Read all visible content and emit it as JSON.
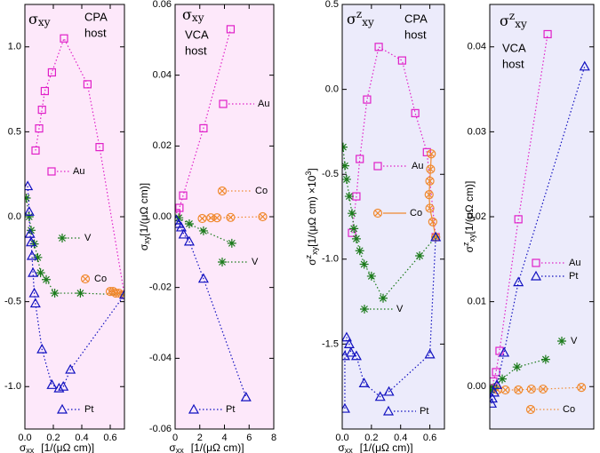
{
  "chart_data": [
    {
      "type": "line",
      "background": "#fde8fa",
      "title": {
        "symbol": "σ",
        "sub": "xy"
      },
      "host": [
        "CPA",
        "host"
      ],
      "xlabel": {
        "symbol": "σ",
        "sub": "xx",
        "unit": "[1/(μΩ cm)]"
      },
      "xlim": [
        0,
        0.7
      ],
      "ylim": [
        -1.25,
        1.25
      ],
      "xticks": [
        {
          "value": 0,
          "label": "0.0"
        },
        0.2,
        0.4,
        0.6
      ],
      "yticks": [
        {
          "value": -1,
          "label": "-1.0"
        },
        -0.5,
        {
          "value": 0,
          "label": "0.0"
        },
        0.5,
        {
          "value": 1,
          "label": "1.0"
        }
      ],
      "series": [
        {
          "name": "Au",
          "color": "#e020c8",
          "marker": "square",
          "line": "dotted",
          "x": [
            0.075,
            0.1,
            0.12,
            0.14,
            0.19,
            0.275,
            0.44,
            0.525,
            0.7
          ],
          "values": [
            0.39,
            0.52,
            0.63,
            0.74,
            0.85,
            1.05,
            0.78,
            0.41,
            -0.46
          ]
        },
        {
          "name": "V",
          "color": "#1a7a1a",
          "marker": "asterisk",
          "line": "dotted",
          "x": [
            0.01,
            0.03,
            0.044,
            0.066,
            0.09,
            0.11,
            0.15,
            0.21,
            0.39,
            0.7
          ],
          "values": [
            0.11,
            0,
            -0.08,
            -0.16,
            -0.24,
            -0.33,
            -0.37,
            -0.45,
            -0.45,
            -0.46
          ]
        },
        {
          "name": "Co",
          "color": "#f08a30",
          "marker": "circled-x",
          "line": "dotted",
          "x": [
            0.6,
            0.62,
            0.64,
            0.66,
            0.7
          ],
          "values": [
            -0.44,
            -0.44,
            -0.45,
            -0.45,
            -0.46
          ]
        },
        {
          "name": "Pt",
          "color": "#1010c0",
          "marker": "triangle",
          "line": "dotted",
          "x": [
            0.02,
            0.03,
            0.035,
            0.044,
            0.05,
            0.057,
            0.066,
            0.074,
            0.12,
            0.19,
            0.24,
            0.27,
            0.32,
            0.7
          ],
          "values": [
            0.18,
            0.03,
            -0.1,
            -0.15,
            -0.23,
            -0.33,
            -0.45,
            -0.51,
            -0.78,
            -0.99,
            -1.01,
            -1.0,
            -0.9,
            -0.46
          ]
        }
      ]
    },
    {
      "type": "line",
      "background": "#fde8fa",
      "title": {
        "symbol": "σ",
        "sub": "xy"
      },
      "host": [
        "VCA",
        "host"
      ],
      "xlabel": {
        "symbol": "σ",
        "sub": "xx",
        "unit": "[1/(μΩ cm)]"
      },
      "ylabel": {
        "symbol": "σ",
        "sub": "xy",
        "unit": "[1/(μΩ cm)]"
      },
      "xlim": [
        0,
        8
      ],
      "ylim": [
        -0.06,
        0.06
      ],
      "xticks": [
        0,
        2,
        4,
        6,
        8
      ],
      "yticks": [
        -0.06,
        -0.04,
        -0.02,
        {
          "value": 0,
          "label": "0.00"
        },
        0.02,
        0.04,
        0.06
      ],
      "series": [
        {
          "name": "Au",
          "color": "#e020c8",
          "marker": "square",
          "line": "dotted",
          "x": [
            0.1,
            0.35,
            0.65,
            2.3,
            4.5
          ],
          "values": [
            0.001,
            0.0025,
            0.006,
            0.025,
            0.053
          ]
        },
        {
          "name": "V",
          "color": "#1a7a1a",
          "marker": "asterisk",
          "line": "dotted",
          "x": [
            0.3,
            1.15,
            2.3,
            4.6
          ],
          "values": [
            -0.0003,
            -0.002,
            -0.004,
            -0.0075
          ]
        },
        {
          "name": "Co",
          "color": "#f08a30",
          "marker": "circled-x",
          "line": "dotted",
          "x": [
            2.2,
            2.9,
            3.4,
            4.5,
            7.1
          ],
          "values": [
            -0.0005,
            -0.0003,
            -0.0003,
            -0.0002,
            0
          ]
        },
        {
          "name": "Pt",
          "color": "#1010c0",
          "marker": "triangle",
          "line": "dotted",
          "x": [
            0.1,
            0.3,
            0.5,
            0.7,
            1.15,
            2.3,
            5.75
          ],
          "values": [
            -0.001,
            -0.002,
            -0.003,
            -0.005,
            -0.007,
            -0.0175,
            -0.051
          ]
        }
      ]
    },
    {
      "type": "line",
      "background": "#ecebfb",
      "title": {
        "symbol": "σ",
        "sup": "z",
        "sub": "xy"
      },
      "host": [
        "CPA",
        "host"
      ],
      "xlabel": {
        "symbol": "σ",
        "sub": "xx",
        "unit": "[1/(μΩ cm)]"
      },
      "ylabel": {
        "symbol": "σ",
        "sup": "z",
        "sub": "xy",
        "unit": "[1/(μΩ cm) ×10",
        "unit_sup": "3",
        "unit_end": "]"
      },
      "xlim": [
        0,
        0.7
      ],
      "ylim": [
        -2.0,
        0.5
      ],
      "xticks": [
        {
          "value": 0,
          "label": "0.0"
        },
        0.2,
        0.4,
        0.6
      ],
      "yticks": [
        -1.5,
        {
          "value": -1,
          "label": "-1.0"
        },
        -0.5,
        {
          "value": 0,
          "label": "0.0"
        },
        0.5
      ],
      "series": [
        {
          "name": "Au",
          "color": "#e020c8",
          "marker": "square",
          "line": "dotted",
          "x": [
            0.067,
            0.097,
            0.12,
            0.17,
            0.25,
            0.41,
            0.5,
            0.58,
            0.64
          ],
          "values": [
            -0.845,
            -0.63,
            -0.41,
            -0.06,
            0.25,
            0.17,
            -0.14,
            -0.37,
            -0.87
          ]
        },
        {
          "name": "V",
          "color": "#1a7a1a",
          "marker": "asterisk",
          "line": "dotted",
          "x": [
            0.006,
            0.018,
            0.03,
            0.048,
            0.067,
            0.08,
            0.097,
            0.12,
            0.15,
            0.2,
            0.28,
            0.53,
            0.64
          ],
          "values": [
            -0.34,
            -0.45,
            -0.53,
            -0.63,
            -0.73,
            -0.82,
            -0.88,
            -0.95,
            -1.03,
            -1.1,
            -1.23,
            -0.98,
            -0.87
          ]
        },
        {
          "name": "Co",
          "color": "#f08a30",
          "marker": "circled-x",
          "line": "solid",
          "x": [
            0.61,
            0.605,
            0.6,
            0.595,
            0.6,
            0.62,
            0.64
          ],
          "values": [
            -0.38,
            -0.47,
            -0.54,
            -0.62,
            -0.7,
            -0.78,
            -0.87
          ]
        },
        {
          "name": "Pt",
          "color": "#1010c0",
          "marker": "triangle",
          "line": "dotted",
          "x": [
            0.018,
            0.018,
            0.03,
            0.048,
            0.06,
            0.097,
            0.15,
            0.26,
            0.32,
            0.6,
            0.64
          ],
          "values": [
            -1.88,
            -1.57,
            -1.46,
            -1.5,
            -1.55,
            -1.57,
            -1.73,
            -1.81,
            -1.78,
            -1.56,
            -0.87
          ]
        }
      ]
    },
    {
      "type": "line",
      "background": "#ecebfb",
      "title": {
        "symbol": "σ",
        "sup": "z",
        "sub": "xy"
      },
      "host": [
        "VCA",
        "host"
      ],
      "ylabel": {
        "symbol": "σ",
        "sup": "z",
        "sub": "xy",
        "unit": "[1/(μΩ cm)]"
      },
      "xlim": [
        0,
        8
      ],
      "ylim": [
        -0.005,
        0.045
      ],
      "yticks": [
        {
          "value": 0,
          "label": "0.00"
        },
        0.01,
        0.02,
        0.03,
        0.04
      ],
      "series": [
        {
          "name": "Au",
          "color": "#e020c8",
          "marker": "square",
          "line": "dotted",
          "x": [
            0.14,
            0.27,
            0.48,
            0.75,
            2.2,
            4.45
          ],
          "values": [
            -0.0002,
            0.0006,
            0.0017,
            0.0042,
            0.0197,
            0.0415
          ]
        },
        {
          "name": "V",
          "color": "#1a7a1a",
          "marker": "asterisk",
          "line": "dotted",
          "x": [
            0.07,
            0.34,
            0.96,
            2.1,
            4.3
          ],
          "values": [
            -0.0004,
            -0.0001,
            0.0009,
            0.0023,
            0.0032
          ]
        },
        {
          "name": "Co",
          "color": "#f08a30",
          "marker": "circled-x",
          "line": "dotted",
          "x": [
            0.6,
            1.2,
            2.2,
            3.2,
            4.1,
            7.05
          ],
          "values": [
            -0.0004,
            -0.0004,
            -0.0004,
            -0.0003,
            -0.0003,
            -0.0001
          ]
        },
        {
          "name": "Pt",
          "color": "#1010c0",
          "marker": "triangle",
          "line": "dotted",
          "x": [
            0.14,
            0.2,
            0.34,
            0.55,
            1.1,
            2.2,
            7.3
          ],
          "values": [
            -0.002,
            -0.0014,
            -0.0007,
            0.0002,
            0.004,
            0.0123,
            0.0377
          ]
        }
      ]
    }
  ]
}
